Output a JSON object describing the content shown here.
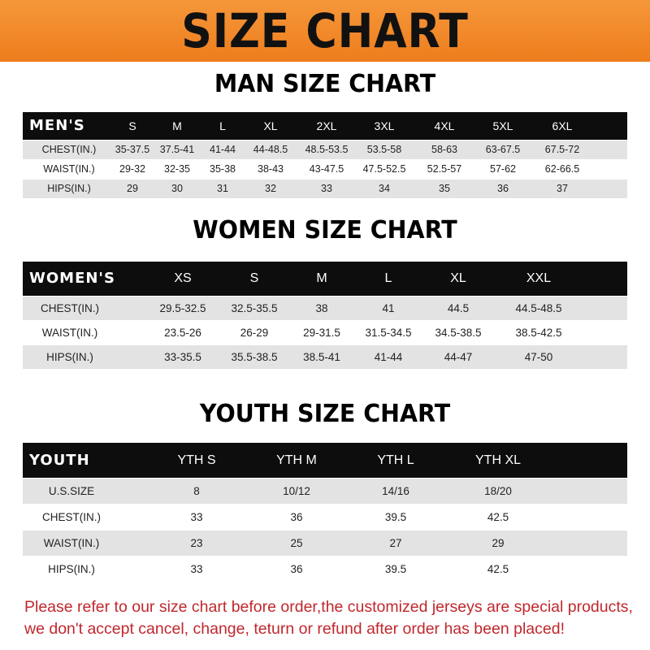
{
  "title": "SIZE CHART",
  "colors": {
    "banner": "#f08a24",
    "header_row": "#0d0d0d",
    "stripe": "#e3e3e3",
    "note": "#c0282d"
  },
  "men": {
    "title": "MAN SIZE CHART",
    "header": [
      "MEN'S",
      "S",
      "M",
      "L",
      "XL",
      "2XL",
      "3XL",
      "4XL",
      "5XL",
      "6XL"
    ],
    "rows": [
      [
        "CHEST(IN.)",
        "35-37.5",
        "37.5-41",
        "41-44",
        "44-48.5",
        "48.5-53.5",
        "53.5-58",
        "58-63",
        "63-67.5",
        "67.5-72"
      ],
      [
        "WAIST(IN.)",
        "29-32",
        "32-35",
        "35-38",
        "38-43",
        "43-47.5",
        "47.5-52.5",
        "52.5-57",
        "57-62",
        "62-66.5"
      ],
      [
        "HIPS(IN.)",
        "29",
        "30",
        "31",
        "32",
        "33",
        "34",
        "35",
        "36",
        "37"
      ]
    ]
  },
  "women": {
    "title": "WOMEN SIZE CHART",
    "header": [
      "WOMEN'S",
      "XS",
      "S",
      "M",
      "L",
      "XL",
      "XXL"
    ],
    "rows": [
      [
        "CHEST(IN.)",
        "29.5-32.5",
        "32.5-35.5",
        "38",
        "41",
        "44.5",
        "44.5-48.5"
      ],
      [
        "WAIST(IN.)",
        "23.5-26",
        "26-29",
        "29-31.5",
        "31.5-34.5",
        "34.5-38.5",
        "38.5-42.5"
      ],
      [
        "HIPS(IN.)",
        "33-35.5",
        "35.5-38.5",
        "38.5-41",
        "41-44",
        "44-47",
        "47-50"
      ]
    ]
  },
  "youth": {
    "title": "YOUTH SIZE CHART",
    "header": [
      "YOUTH",
      "YTH S",
      "YTH M",
      "YTH L",
      "YTH XL"
    ],
    "rows": [
      [
        "U.S.SIZE",
        "8",
        "10/12",
        "14/16",
        "18/20"
      ],
      [
        "CHEST(IN.)",
        "33",
        "36",
        "39.5",
        "42.5"
      ],
      [
        "WAIST(IN.)",
        "23",
        "25",
        "27",
        "29"
      ],
      [
        "HIPS(IN.)",
        "33",
        "36",
        "39.5",
        "42.5"
      ]
    ]
  },
  "note": "Please refer to our size chart before order,the customized jerseys are special products, we don't accept cancel, change, teturn or refund after order has been placed!"
}
